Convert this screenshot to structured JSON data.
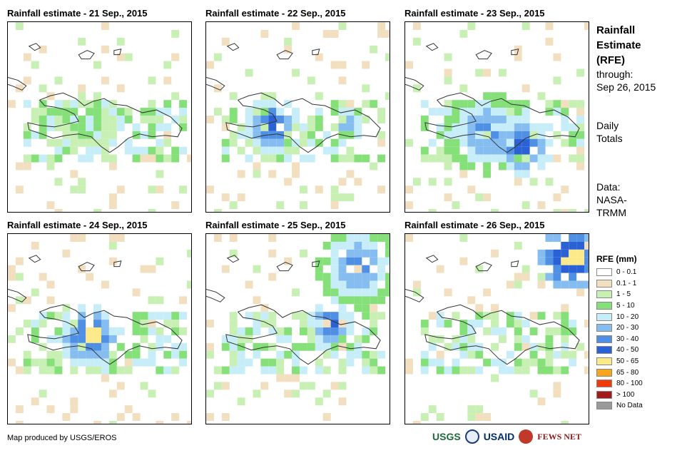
{
  "panels": [
    {
      "title": "Rainfall estimate - 21 Sep., 2015"
    },
    {
      "title": "Rainfall estimate - 22 Sep., 2015"
    },
    {
      "title": "Rainfall estimate - 23 Sep., 2015"
    },
    {
      "title": "Rainfall estimate - 24 Sep., 2015"
    },
    {
      "title": "Rainfall estimate - 25 Sep., 2015"
    },
    {
      "title": "Rainfall estimate - 26 Sep., 2015"
    }
  ],
  "sidebar": {
    "title_lines": [
      "Rainfall",
      "Estimate",
      "(RFE)"
    ],
    "through_label": "through:",
    "through_date": "Sep 26, 2015",
    "daily_lines": [
      "Daily",
      "Totals"
    ],
    "data_lines": [
      "Data:",
      "NASA-",
      "TRMM"
    ]
  },
  "legend": {
    "title": "RFE (mm)",
    "items": [
      {
        "label": "0 - 0.1",
        "color": "#ffffff"
      },
      {
        "label": "0.1 - 1",
        "color": "#f1dfc0"
      },
      {
        "label": "1 - 5",
        "color": "#c8f0b4"
      },
      {
        "label": "5 - 10",
        "color": "#86e07a"
      },
      {
        "label": "10 - 20",
        "color": "#c7eef8"
      },
      {
        "label": "20 - 30",
        "color": "#86bdf0"
      },
      {
        "label": "30 - 40",
        "color": "#4f8fe4"
      },
      {
        "label": "40 - 50",
        "color": "#2a62d6"
      },
      {
        "label": "50 - 65",
        "color": "#fbe98a"
      },
      {
        "label": "65 - 80",
        "color": "#f7a51c"
      },
      {
        "label": "80 - 100",
        "color": "#f03a0c"
      },
      {
        "label": "> 100",
        "color": "#a31a1a"
      },
      {
        "label": "No Data",
        "color": "#9a9a9a"
      }
    ]
  },
  "footer": {
    "credit": "Map produced by USGS/EROS",
    "logos": [
      "USGS",
      "USAID",
      "FEWS NET"
    ]
  }
}
